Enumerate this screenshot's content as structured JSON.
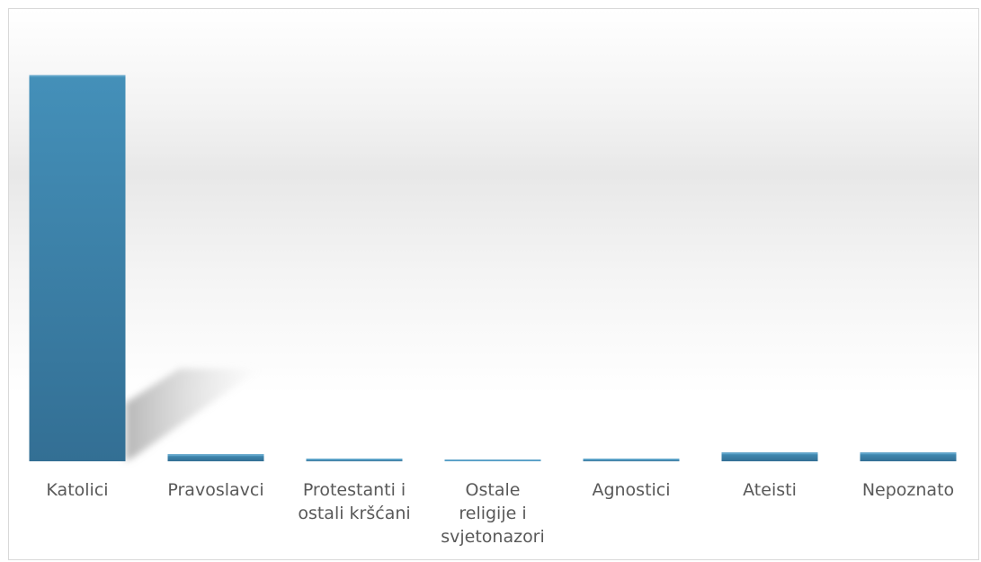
{
  "chart_data": {
    "type": "bar",
    "categories": [
      "Katolici",
      "Pravoslavci",
      "Protestanti i ostali kršćani",
      "Ostale religije i svjetonazori",
      "Agnostici",
      "Ateisti",
      "Nepoznato"
    ],
    "category_label_lines": [
      [
        "Katolici"
      ],
      [
        "Pravoslavci"
      ],
      [
        "Protestanti i",
        "ostali kršćani"
      ],
      [
        "Ostale",
        "religije i",
        "svjetonazori"
      ],
      [
        "Agnostici"
      ],
      [
        "Ateisti"
      ],
      [
        "Nepoznato"
      ]
    ],
    "values": [
      88.0,
      1.6,
      0.6,
      0.4,
      0.6,
      2.0,
      2.0
    ],
    "ylim": [
      0,
      100
    ],
    "title": "",
    "xlabel": "",
    "ylabel": "",
    "legend": "none",
    "grid": false,
    "bar_color": "#3f7fa6",
    "bar_color_dark": "#2f6a8f"
  }
}
